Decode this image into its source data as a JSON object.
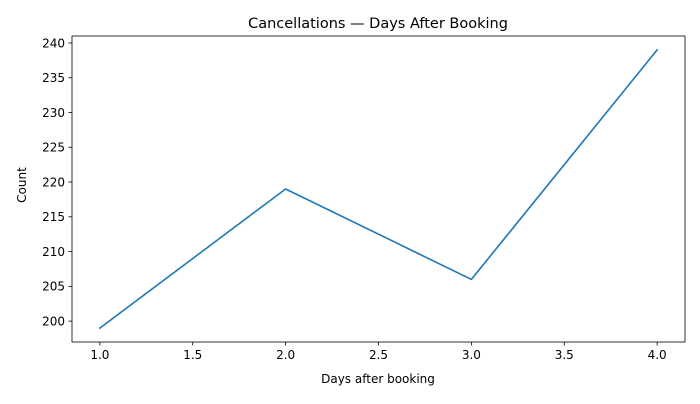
{
  "chart_data": {
    "type": "line",
    "title": "Cancellations — Days After Booking",
    "xlabel": "Days after booking",
    "ylabel": "Count",
    "x": [
      1.0,
      2.0,
      3.0,
      4.0
    ],
    "series": [
      {
        "values": [
          199,
          219,
          206,
          239
        ],
        "color": "#1f77b4"
      }
    ],
    "xlim": [
      0.85,
      4.15
    ],
    "ylim": [
      197.0,
      241.0
    ],
    "xticks": [
      1.0,
      1.5,
      2.0,
      2.5,
      3.0,
      3.5,
      4.0
    ],
    "xtick_labels": [
      "1.0",
      "1.5",
      "2.0",
      "2.5",
      "3.0",
      "3.5",
      "4.0"
    ],
    "yticks": [
      200,
      205,
      210,
      215,
      220,
      225,
      230,
      235,
      240
    ],
    "ytick_labels": [
      "200",
      "205",
      "210",
      "215",
      "220",
      "225",
      "230",
      "235",
      "240"
    ],
    "grid": false,
    "legend": "none"
  }
}
